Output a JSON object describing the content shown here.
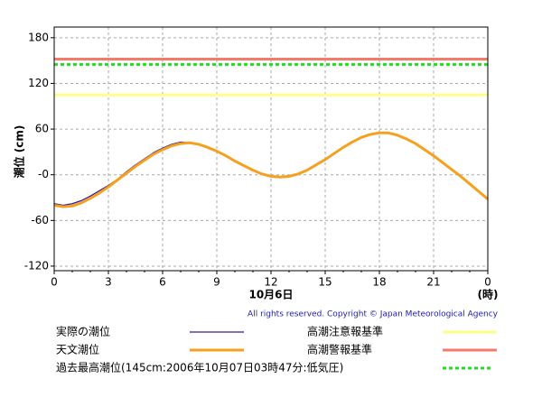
{
  "chart_data": {
    "type": "line",
    "ylabel": "潮位 (cm)",
    "xlabel": "10月6日",
    "xunit": "(時)",
    "copyright": "All rights reserved. Copyright © Japan Meteorological Agency",
    "x": [
      0,
      0.5,
      1,
      1.5,
      2,
      2.5,
      3,
      3.5,
      4,
      4.5,
      5,
      5.5,
      6,
      6.5,
      7,
      7.5,
      8,
      8.5,
      9,
      9.5,
      10,
      10.5,
      11,
      11.5,
      12,
      12.5,
      13,
      13.5,
      14,
      14.5,
      15,
      15.5,
      16,
      16.5,
      17,
      17.5,
      18,
      18.5,
      19,
      19.5,
      20,
      20.5,
      21,
      21.5,
      22,
      22.5,
      23,
      23.5,
      24
    ],
    "series": [
      {
        "name": "実際の潮位",
        "color": "#2a1aa0",
        "width": 1.2,
        "values": [
          -38,
          -40,
          -38,
          -34,
          -28,
          -21,
          -14,
          -6,
          4,
          13,
          21,
          29,
          35,
          40,
          43,
          42,
          40,
          35,
          30,
          null,
          null,
          null,
          null,
          null,
          null,
          null,
          null,
          null,
          null,
          null,
          null,
          null,
          null,
          null,
          null,
          null,
          null,
          null,
          null,
          null,
          null,
          null,
          null,
          null,
          null,
          null,
          null,
          null,
          null
        ]
      },
      {
        "name": "天文潮位",
        "color": "#f5a01e",
        "width": 3,
        "values": [
          -40,
          -42,
          -41,
          -37,
          -31,
          -24,
          -16,
          -7,
          2,
          11,
          19,
          27,
          33,
          38,
          41,
          42,
          40,
          36,
          31,
          25,
          18,
          12,
          6,
          1,
          -2,
          -3,
          -2,
          1,
          6,
          13,
          20,
          28,
          36,
          43,
          49,
          53,
          55,
          55,
          52,
          47,
          41,
          33,
          25,
          16,
          7,
          -2,
          -12,
          -22,
          -32
        ]
      }
    ],
    "reference_lines": [
      {
        "name": "過去最高潮位(145cm:2006年10月07日03時47分:低気圧)",
        "value": 145,
        "color": "#22dd22",
        "dashed": true
      },
      {
        "name": "高潮注意報基準",
        "value": 105,
        "color": "#ffff88",
        "dashed": false
      },
      {
        "name": "高潮警報基準",
        "value": 152,
        "color": "#f57a6a",
        "dashed": false
      }
    ],
    "xlim": [
      0,
      24
    ],
    "xticks": [
      0,
      3,
      6,
      9,
      12,
      15,
      18,
      21,
      {
        "value": 24,
        "label": "0"
      }
    ],
    "ylim": [
      -126,
      194
    ],
    "yticks": [
      180,
      120,
      60,
      {
        "value": 0,
        "label": "-0"
      },
      -60,
      -120
    ],
    "grid": true
  }
}
